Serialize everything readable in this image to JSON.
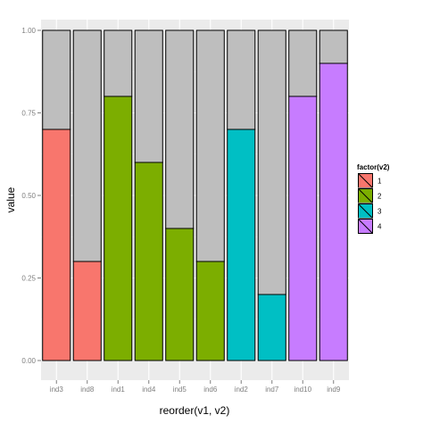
{
  "chart_data": {
    "type": "bar",
    "stacked": true,
    "categories": [
      "ind3",
      "ind8",
      "ind1",
      "ind4",
      "ind5",
      "ind6",
      "ind2",
      "ind7",
      "ind10",
      "ind9"
    ],
    "values": [
      0.7,
      0.3,
      0.8,
      0.6,
      0.4,
      0.3,
      0.7,
      0.2,
      0.8,
      0.9
    ],
    "factor": [
      "1",
      "1",
      "2",
      "2",
      "2",
      "2",
      "3",
      "3",
      "4",
      "4"
    ],
    "remainder_values": [
      0.3,
      0.7,
      0.2,
      0.4,
      0.6,
      0.7,
      0.3,
      0.8,
      0.2,
      0.1
    ],
    "remainder_color": "#bebebe",
    "xlabel": "reorder(v1, v2)",
    "ylabel": "value",
    "ylim": [
      0,
      1
    ],
    "yticks": [
      0,
      0.25,
      0.5,
      0.75,
      1
    ],
    "ytick_labels": [
      "0.00",
      "0.25",
      "0.50",
      "0.75",
      "1.00"
    ],
    "grid": true,
    "panel_background": "#ebebeb",
    "gridline_color": "#ffffff",
    "legend": {
      "title": "factor(v2)",
      "position": "right",
      "entries": [
        {
          "label": "1",
          "color": "#f8766d"
        },
        {
          "label": "2",
          "color": "#7cae00"
        },
        {
          "label": "3",
          "color": "#00bfc4"
        },
        {
          "label": "4",
          "color": "#c77cff"
        }
      ]
    }
  }
}
